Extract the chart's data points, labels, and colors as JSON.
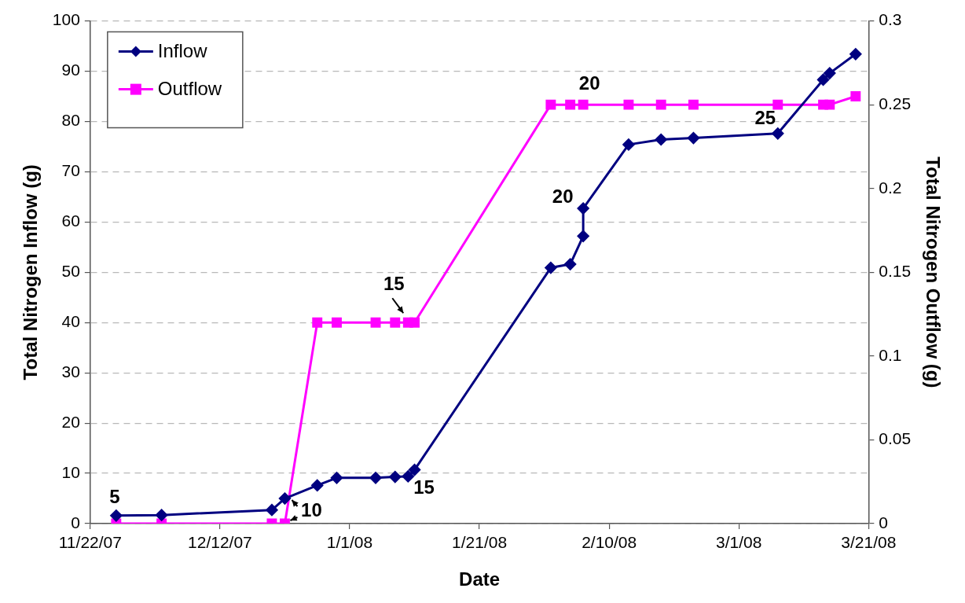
{
  "chart_data": {
    "type": "line",
    "xlabel": "Date",
    "ylabel": "Total Nitrogen Inflow (g)",
    "y2label": "Total Nitrogen Outflow (g)",
    "x": [
      "2007-11-26",
      "2007-12-03",
      "2007-12-20",
      "2007-12-22",
      "2007-12-27",
      "2007-12-30",
      "2008-01-05",
      "2008-01-08",
      "2008-01-10",
      "2008-01-11",
      "2008-02-01",
      "2008-02-04",
      "2008-02-06",
      "2008-02-06",
      "2008-02-13",
      "2008-02-18",
      "2008-02-23",
      "2008-03-07",
      "2008-03-14",
      "2008-03-15",
      "2008-03-19"
    ],
    "series": [
      {
        "name": "Inflow",
        "color": "#000080",
        "marker": "diamond",
        "values": [
          1.6,
          1.7,
          2.7,
          5.0,
          7.6,
          9.1,
          9.1,
          9.3,
          9.4,
          10.7,
          50.9,
          51.6,
          57.2,
          62.7,
          75.4,
          76.4,
          76.7,
          77.6,
          88.3,
          89.6,
          93.4
        ]
      },
      {
        "name": "Outflow",
        "color": "#ff00ff",
        "marker": "square",
        "axis": "y2",
        "values": [
          0,
          0,
          0,
          0,
          0.12,
          0.12,
          0.12,
          0.12,
          0.12,
          0.12,
          0.25,
          0.25,
          0.25,
          null,
          0.25,
          0.25,
          0.25,
          0.25,
          0.25,
          0.25,
          0.255
        ]
      }
    ],
    "xlim": [
      "2007-11-22",
      "2008-03-21"
    ],
    "xticks": [
      {
        "value": "2007-11-22",
        "label": "11/22/07"
      },
      {
        "value": "2007-12-12",
        "label": "12/12/07"
      },
      {
        "value": "2008-01-01",
        "label": "1/1/08"
      },
      {
        "value": "2008-01-21",
        "label": "1/21/08"
      },
      {
        "value": "2008-02-10",
        "label": "2/10/08"
      },
      {
        "value": "2008-03-01",
        "label": "3/1/08"
      },
      {
        "value": "2008-03-21",
        "label": "3/21/08"
      }
    ],
    "ylim": [
      0,
      100
    ],
    "yticks": [
      0,
      10,
      20,
      30,
      40,
      50,
      60,
      70,
      80,
      90,
      100
    ],
    "y2lim": [
      0,
      0.3
    ],
    "y2ticks": [
      0,
      0.05,
      0.1,
      0.15,
      0.2,
      0.25,
      0.3
    ],
    "annotations": [
      {
        "text": "5",
        "x": "2007-11-26",
        "y": 1.6
      },
      {
        "text": "10",
        "x": "2007-12-22",
        "y": 5.0
      },
      {
        "text": "15",
        "x": "2008-01-10",
        "y": 40
      },
      {
        "text": "15",
        "x": "2008-01-11",
        "y": 10.7
      },
      {
        "text": "20",
        "x": "2008-02-06",
        "y": 62.7
      },
      {
        "text": "20",
        "x": "2008-02-06",
        "y": 83.3
      },
      {
        "text": "25",
        "x": "2008-03-07",
        "y": 77.6
      }
    ],
    "grid": "y",
    "legend": "top left",
    "line_style": "solid"
  }
}
